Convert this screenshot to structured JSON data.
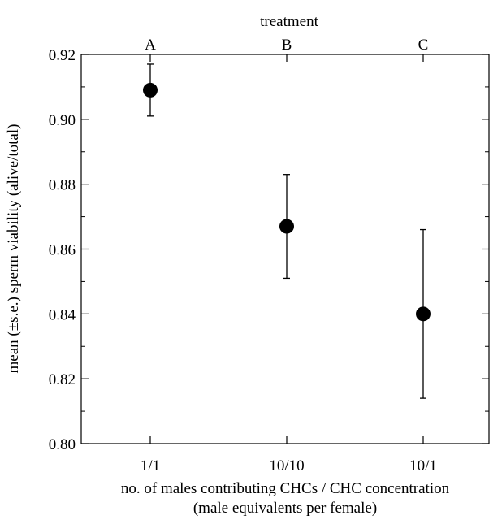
{
  "chart_data": {
    "type": "scatter",
    "top_axis_title": "treatment",
    "top_labels": [
      "A",
      "B",
      "C"
    ],
    "categories": [
      "1/1",
      "10/10",
      "10/1"
    ],
    "xlabel_line1": "no. of males contributing CHCs / CHC concentration",
    "xlabel_line2": "(male equivalents per female)",
    "ylabel": "mean (±s.e.) sperm viability (alive/total)",
    "ylim": [
      0.8,
      0.92
    ],
    "yticks": [
      0.8,
      0.82,
      0.84,
      0.86,
      0.88,
      0.9,
      0.92
    ],
    "ytick_labels": [
      "0.80",
      "0.82",
      "0.84",
      "0.86",
      "0.88",
      "0.90",
      "0.92"
    ],
    "minor_ytick_step": 0.01,
    "grid": false,
    "series": [
      {
        "values": [
          0.909,
          0.867,
          0.84
        ],
        "error_low": [
          0.901,
          0.851,
          0.814
        ],
        "error_high": [
          0.917,
          0.883,
          0.866
        ]
      }
    ]
  }
}
